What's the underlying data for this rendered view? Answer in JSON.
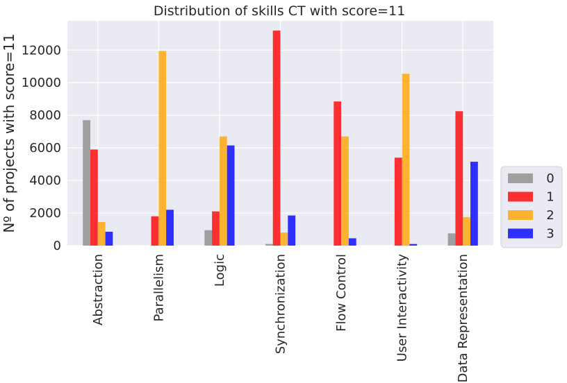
{
  "chart_data": {
    "type": "bar",
    "title": "Distribution of skills CT with score=11",
    "xlabel": "",
    "ylabel": "Nº of projects with score=11",
    "categories": [
      "Abstraction",
      "Parallelism",
      "Logic",
      "Synchronization",
      "Flow Control",
      "User Interactivity",
      "Data Representation"
    ],
    "ylim": [
      0,
      13800
    ],
    "yticks": [
      0,
      2000,
      4000,
      6000,
      8000,
      10000,
      12000
    ],
    "grid": true,
    "legend_position": "right",
    "series": [
      {
        "name": "0",
        "color": "#8c8c8c",
        "values": [
          7700,
          0,
          950,
          100,
          0,
          0,
          750
        ]
      },
      {
        "name": "1",
        "color": "#ff0000",
        "values": [
          5900,
          1800,
          2100,
          13200,
          8850,
          5400,
          8250
        ]
      },
      {
        "name": "2",
        "color": "#ffa500",
        "values": [
          1450,
          11950,
          6700,
          800,
          6700,
          10550,
          1750
        ]
      },
      {
        "name": "3",
        "color": "#0000ff",
        "values": [
          850,
          2200,
          6150,
          1850,
          450,
          100,
          5150
        ]
      }
    ]
  }
}
